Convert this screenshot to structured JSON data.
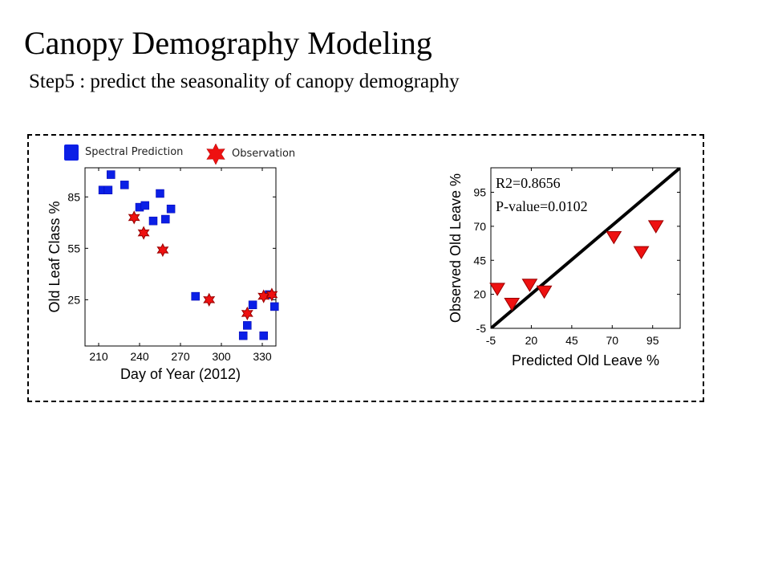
{
  "slide": {
    "title": "Canopy Demography Modeling",
    "subtitle": "Step5 : predict the seasonality of canopy demography"
  },
  "legend": {
    "spectral_label": "Spectral Prediction",
    "observation_label": "Observation",
    "spectral_color": "#0b1fe6",
    "observation_color": "#ee1111"
  },
  "chart_data": [
    {
      "type": "scatter",
      "title": "",
      "xlabel": "Day of Year (2012)",
      "ylabel": "Old Leaf Class %",
      "xlim": [
        200,
        340
      ],
      "ylim": [
        -2,
        102
      ],
      "xticks": [
        210,
        240,
        270,
        300,
        330
      ],
      "yticks": [
        25,
        55,
        85
      ],
      "series": [
        {
          "name": "Spectral Prediction",
          "marker": "square",
          "color": "#0b1fe6",
          "points": [
            [
              213,
              89
            ],
            [
              217,
              89
            ],
            [
              219,
              98
            ],
            [
              229,
              92
            ],
            [
              240,
              79
            ],
            [
              244,
              80
            ],
            [
              250,
              71
            ],
            [
              255,
              87
            ],
            [
              259,
              72
            ],
            [
              263,
              78
            ],
            [
              281,
              27
            ],
            [
              316,
              4
            ],
            [
              319,
              10
            ],
            [
              323,
              22
            ],
            [
              331,
              4
            ],
            [
              335,
              28
            ],
            [
              339,
              21
            ]
          ]
        },
        {
          "name": "Observation",
          "marker": "star",
          "color": "#ee1111",
          "points": [
            [
              236,
              73
            ],
            [
              243,
              64
            ],
            [
              257,
              54
            ],
            [
              291,
              25
            ],
            [
              319,
              17
            ],
            [
              331,
              27
            ],
            [
              337,
              28
            ]
          ]
        }
      ]
    },
    {
      "type": "scatter",
      "title": "",
      "xlabel": "Predicted Old Leave %",
      "ylabel": "Observed Old Leave %",
      "xlim": [
        -5,
        112
      ],
      "ylim": [
        -5,
        113
      ],
      "xticks": [
        -5,
        20,
        45,
        70,
        95
      ],
      "yticks": [
        -5,
        20,
        45,
        70,
        95
      ],
      "annotations": [
        "R2=0.8656",
        "P-value=0.0102"
      ],
      "fit_line": [
        [
          -5,
          -5
        ],
        [
          112,
          113
        ]
      ],
      "series": [
        {
          "marker": "triangle-down",
          "color": "#ee1111",
          "points": [
            [
              -1,
              24
            ],
            [
              8,
              13
            ],
            [
              19,
              27
            ],
            [
              28,
              22
            ],
            [
              71,
              62
            ],
            [
              88,
              51
            ],
            [
              97,
              70
            ]
          ]
        }
      ]
    }
  ]
}
